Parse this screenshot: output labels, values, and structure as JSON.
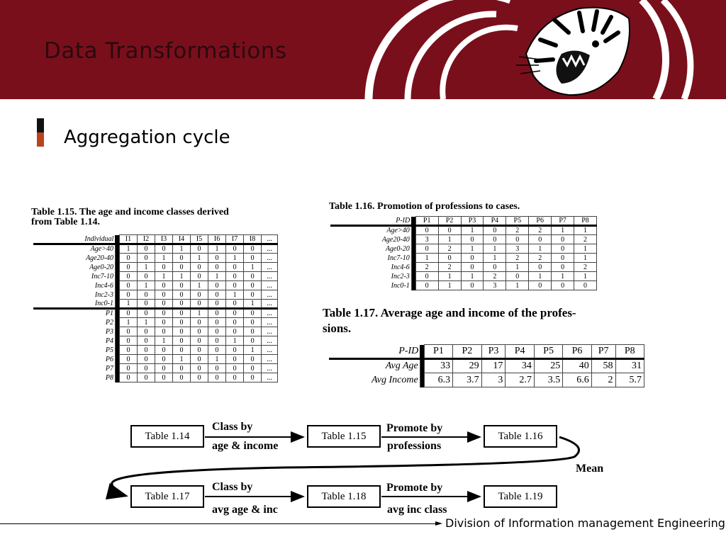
{
  "header": {
    "title": "Data Transformations"
  },
  "bullet": {
    "text": "Aggregation cycle"
  },
  "table115": {
    "caption": "Table 1.15. The age and income classes derived from Table 1.14.",
    "caption_l1": "Table 1.15. The age and income classes derived",
    "caption_l2": "from Table 1.14.",
    "row_header": "Individual",
    "cols": [
      "I1",
      "I2",
      "I3",
      "I4",
      "I5",
      "I6",
      "I7",
      "I8",
      "..."
    ],
    "rows": [
      {
        "label": "Age>40",
        "vals": [
          "1",
          "0",
          "0",
          "1",
          "0",
          "1",
          "0",
          "0",
          "..."
        ]
      },
      {
        "label": "Age20-40",
        "vals": [
          "0",
          "0",
          "1",
          "0",
          "1",
          "0",
          "1",
          "0",
          "..."
        ]
      },
      {
        "label": "Age0-20",
        "vals": [
          "0",
          "1",
          "0",
          "0",
          "0",
          "0",
          "0",
          "1",
          "..."
        ]
      },
      {
        "label": "Inc7-10",
        "vals": [
          "0",
          "0",
          "1",
          "1",
          "0",
          "1",
          "0",
          "0",
          "..."
        ]
      },
      {
        "label": "Inc4-6",
        "vals": [
          "0",
          "1",
          "0",
          "0",
          "1",
          "0",
          "0",
          "0",
          "..."
        ]
      },
      {
        "label": "Inc2-3",
        "vals": [
          "0",
          "0",
          "0",
          "0",
          "0",
          "0",
          "1",
          "0",
          "..."
        ]
      },
      {
        "label": "Inc0-1",
        "vals": [
          "1",
          "0",
          "0",
          "0",
          "0",
          "0",
          "0",
          "1",
          "..."
        ]
      },
      {
        "label": "P1",
        "vals": [
          "0",
          "0",
          "0",
          "0",
          "1",
          "0",
          "0",
          "0",
          "..."
        ]
      },
      {
        "label": "P2",
        "vals": [
          "1",
          "1",
          "0",
          "0",
          "0",
          "0",
          "0",
          "0",
          "..."
        ]
      },
      {
        "label": "P3",
        "vals": [
          "0",
          "0",
          "0",
          "0",
          "0",
          "0",
          "0",
          "0",
          "..."
        ]
      },
      {
        "label": "P4",
        "vals": [
          "0",
          "0",
          "1",
          "0",
          "0",
          "0",
          "1",
          "0",
          "..."
        ]
      },
      {
        "label": "P5",
        "vals": [
          "0",
          "0",
          "0",
          "0",
          "0",
          "0",
          "0",
          "1",
          "..."
        ]
      },
      {
        "label": "P6",
        "vals": [
          "0",
          "0",
          "0",
          "1",
          "0",
          "1",
          "0",
          "0",
          "..."
        ]
      },
      {
        "label": "P7",
        "vals": [
          "0",
          "0",
          "0",
          "0",
          "0",
          "0",
          "0",
          "0",
          "..."
        ]
      },
      {
        "label": "P8",
        "vals": [
          "0",
          "0",
          "0",
          "0",
          "0",
          "0",
          "0",
          "0",
          "..."
        ]
      }
    ]
  },
  "table116": {
    "caption": "Table 1.16. Promotion of professions to cases.",
    "row_header": "P-ID",
    "cols": [
      "P1",
      "P2",
      "P3",
      "P4",
      "P5",
      "P6",
      "P7",
      "P8"
    ],
    "rows": [
      {
        "label": "Age>40",
        "vals": [
          "0",
          "0",
          "1",
          "0",
          "2",
          "2",
          "1",
          "1"
        ]
      },
      {
        "label": "Age20-40",
        "vals": [
          "3",
          "1",
          "0",
          "0",
          "0",
          "0",
          "0",
          "2"
        ]
      },
      {
        "label": "Age0-20",
        "vals": [
          "0",
          "2",
          "1",
          "1",
          "3",
          "1",
          "0",
          "1"
        ]
      },
      {
        "label": "Inc7-10",
        "vals": [
          "1",
          "0",
          "0",
          "1",
          "2",
          "2",
          "0",
          "1"
        ]
      },
      {
        "label": "Inc4-6",
        "vals": [
          "2",
          "2",
          "0",
          "0",
          "1",
          "0",
          "0",
          "2"
        ]
      },
      {
        "label": "Inc2-3",
        "vals": [
          "0",
          "1",
          "1",
          "2",
          "0",
          "1",
          "1",
          "1"
        ]
      },
      {
        "label": "Inc0-1",
        "vals": [
          "0",
          "1",
          "0",
          "3",
          "1",
          "0",
          "0",
          "0"
        ]
      }
    ]
  },
  "table117": {
    "caption_l1": "Table 1.17. Average age and income of the profes-",
    "caption_l2": "sions.",
    "row_header": "P-ID",
    "cols": [
      "P1",
      "P2",
      "P3",
      "P4",
      "P5",
      "P6",
      "P7",
      "P8"
    ],
    "rows": [
      {
        "label": "Avg Age",
        "vals": [
          "33",
          "29",
          "17",
          "34",
          "25",
          "40",
          "58",
          "31"
        ]
      },
      {
        "label": "Avg Income",
        "vals": [
          "6.3",
          "3.7",
          "3",
          "2.7",
          "3.5",
          "6.6",
          "2",
          "5.7"
        ]
      }
    ]
  },
  "flow": {
    "boxes": [
      "Table 1.14",
      "Table 1.15",
      "Table 1.16",
      "Table 1.17",
      "Table 1.18",
      "Table 1.19"
    ],
    "labels": {
      "class_by": "Class by",
      "age_income": "age & income",
      "promote_by": "Promote by",
      "professions": "professions",
      "mean": "Mean",
      "class_by_2": "Class by",
      "avg_age_inc": "avg age & inc",
      "promote_by_2": "Promote by",
      "avg_inc_class": "avg inc class"
    }
  },
  "footer": {
    "text": "Division of Information management Engineering"
  },
  "colors": {
    "header_bg": "#7a0f1c",
    "accent": "#b8441c"
  }
}
